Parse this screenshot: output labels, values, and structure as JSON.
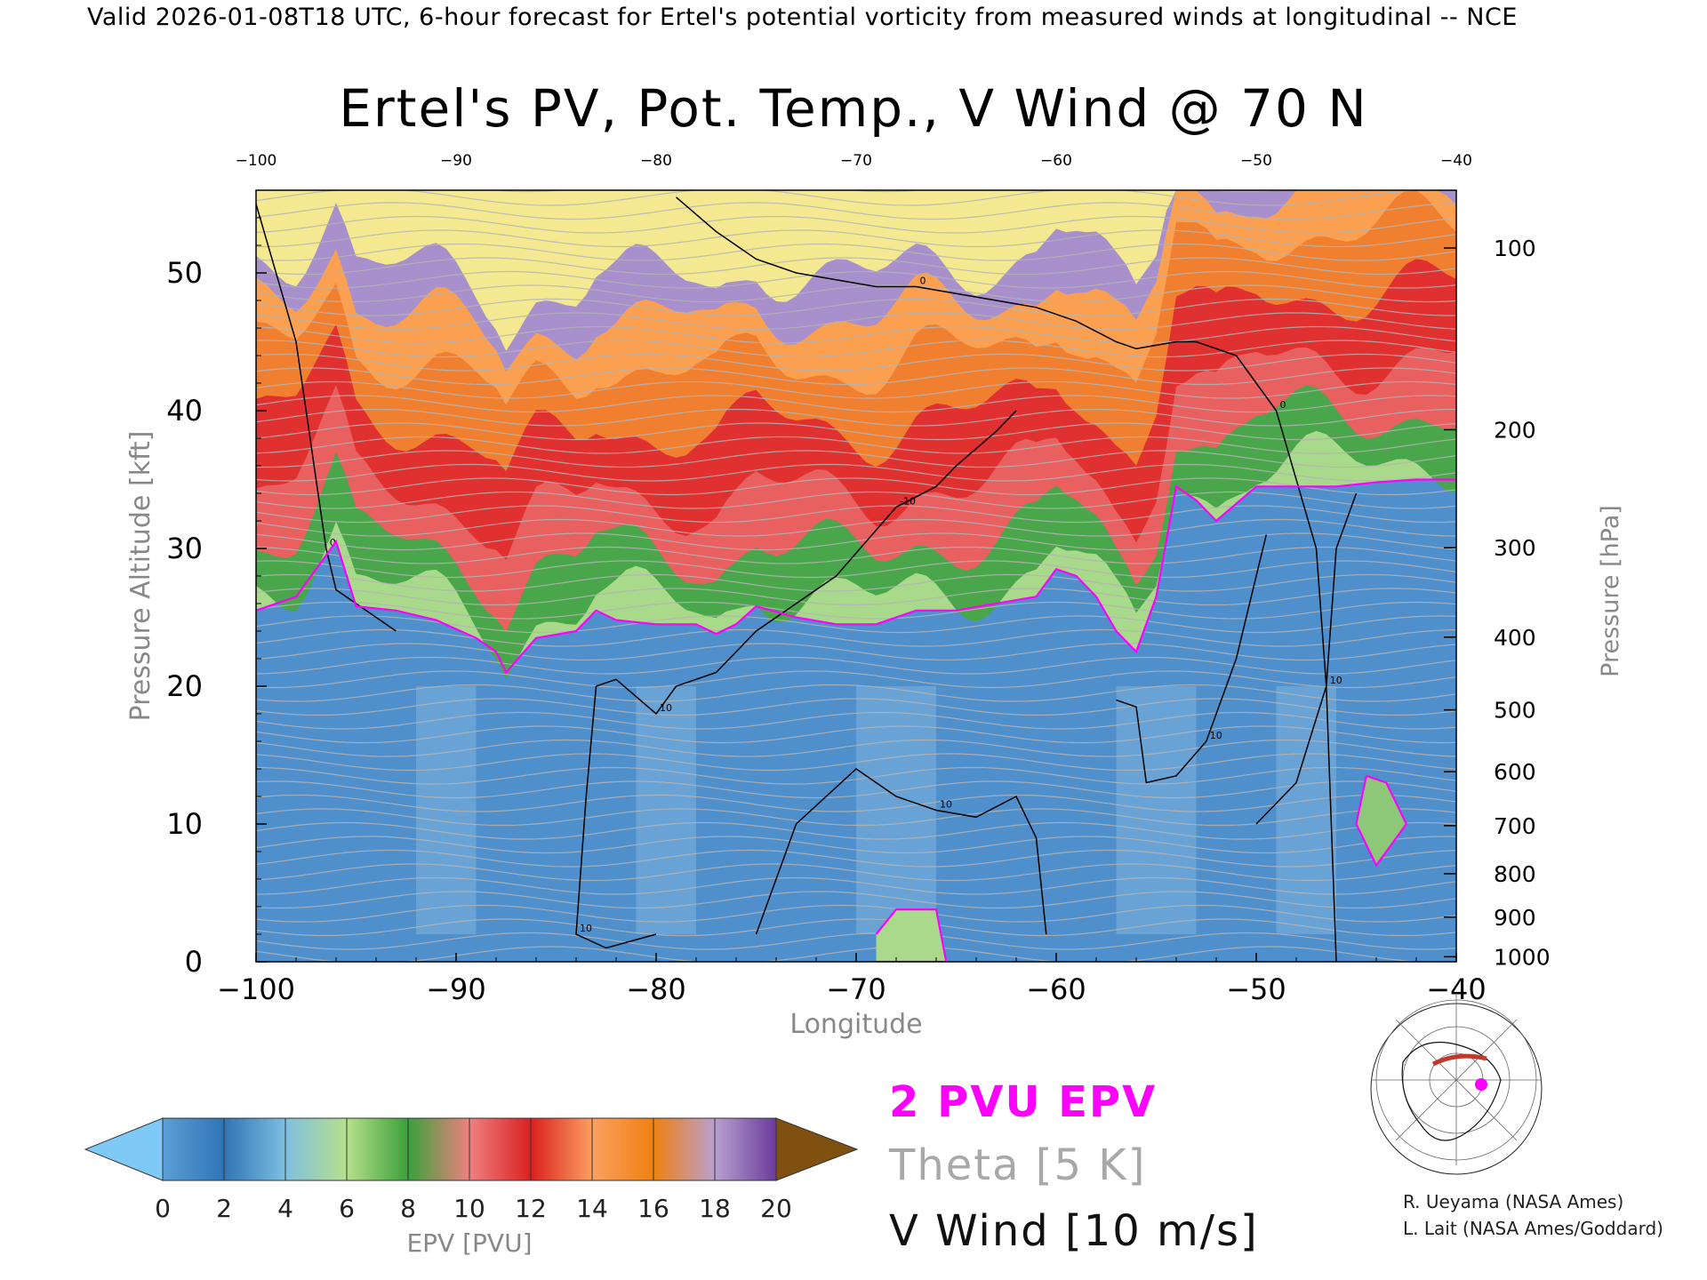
{
  "header": {
    "caption": "Valid 2026-01-08T18 UTC, 6-hour forecast for Ertel's potential vorticity from measured winds at longitudinal -- NCE"
  },
  "chart_data": {
    "type": "heatmap",
    "title": "Ertel's PV, Pot. Temp., V Wind @ 70 N",
    "xlabel": "Longitude",
    "ylabel": "Pressure Altitude [kft]",
    "ylabel_right": "Pressure [hPa]",
    "xlim": [
      -100,
      -40
    ],
    "ylim": [
      0,
      56
    ],
    "x_ticks": [
      -100,
      -90,
      -80,
      -70,
      -60,
      -50,
      -40
    ],
    "x_tick_labels": [
      "−100",
      "−90",
      "−80",
      "−70",
      "−60",
      "−50",
      "−40"
    ],
    "top_tick_labels": [
      "−100",
      "−90",
      "−80",
      "−70",
      "−60",
      "−50",
      "−40"
    ],
    "y_ticks": [
      0,
      10,
      20,
      30,
      40,
      50
    ],
    "y_tick_labels": [
      "0",
      "10",
      "20",
      "30",
      "40",
      "50"
    ],
    "pressure_ticks": [
      {
        "hpa": 100,
        "label": "100"
      },
      {
        "hpa": 200,
        "label": "200"
      },
      {
        "hpa": 300,
        "label": "300"
      },
      {
        "hpa": 400,
        "label": "400"
      },
      {
        "hpa": 500,
        "label": "500"
      },
      {
        "hpa": 600,
        "label": "600"
      },
      {
        "hpa": 700,
        "label": "700"
      },
      {
        "hpa": 800,
        "label": "800"
      },
      {
        "hpa": 900,
        "label": "900"
      },
      {
        "hpa": 1000,
        "label": "1000"
      }
    ],
    "pv_2pvu_contour": {
      "lon": [
        -100,
        -98,
        -96.5,
        -96,
        -95,
        -93,
        -91,
        -89,
        -88,
        -87.5,
        -86,
        -84,
        -83,
        -82,
        -80,
        -78,
        -77,
        -76,
        -75,
        -73,
        -71,
        -69,
        -67,
        -65,
        -63,
        -61,
        -60,
        -59,
        -58,
        -57,
        -56,
        -55,
        -54,
        -53,
        -52,
        -50,
        -48,
        -46,
        -44,
        -42,
        -40
      ],
      "alt": [
        25.5,
        26.5,
        29.5,
        30.5,
        25.8,
        25.5,
        24.8,
        23.5,
        22.5,
        21.0,
        23.5,
        24.0,
        25.5,
        24.8,
        24.5,
        24.5,
        23.8,
        24.5,
        25.8,
        25.0,
        24.5,
        24.5,
        25.5,
        25.5,
        26.0,
        26.5,
        28.5,
        28.0,
        26.5,
        24.0,
        22.5,
        26.5,
        34.5,
        33.5,
        32.0,
        34.5,
        34.5,
        34.5,
        34.8,
        35.0,
        35.0
      ]
    },
    "low_level_2pvu": [
      {
        "lon": [
          -69,
          -68,
          -66,
          -65.5,
          -69
        ],
        "alt": [
          2,
          3.8,
          3.8,
          0,
          0
        ]
      },
      {
        "lon": [
          -44.5,
          -43.5,
          -42.5,
          -44.0,
          -45.0,
          -44.5
        ],
        "alt": [
          13.5,
          13.0,
          10.0,
          7.0,
          10.0,
          13.5
        ]
      }
    ],
    "wind_contours": [
      {
        "level": "0",
        "lon": [
          -100,
          -99,
          -98,
          -97.5,
          -97,
          -96.5,
          -96,
          -95,
          -94,
          -93
        ],
        "alt": [
          55,
          50,
          45,
          40,
          35,
          30,
          27,
          26,
          25,
          24
        ]
      },
      {
        "level": "0",
        "lon": [
          -79,
          -77,
          -75,
          -73,
          -71,
          -69,
          -67,
          -65,
          -63,
          -61,
          -59,
          -57,
          -56
        ],
        "alt": [
          55.5,
          53,
          51,
          50,
          49.5,
          49,
          49,
          48.5,
          48,
          47.5,
          46.5,
          45,
          44.5
        ]
      },
      {
        "level": "0",
        "lon": [
          -56,
          -54,
          -53,
          -51,
          -49,
          -48,
          -47,
          -46.5,
          -46
        ],
        "alt": [
          44.5,
          45,
          45,
          44,
          40,
          35,
          30,
          20,
          0
        ]
      },
      {
        "level": "-10",
        "lon": [
          -77,
          -75,
          -73,
          -71,
          -68,
          -66,
          -65,
          -63,
          -62
        ],
        "alt": [
          21,
          24,
          26,
          28,
          33,
          34.5,
          36,
          38.5,
          40
        ]
      },
      {
        "level": "10",
        "lon": [
          -83,
          -82,
          -80,
          -79,
          -77
        ],
        "alt": [
          20,
          20.5,
          18,
          20,
          21
        ]
      },
      {
        "level": "10",
        "lon": [
          -83,
          -83.5,
          -84,
          -82.5,
          -80
        ],
        "alt": [
          20,
          12,
          2,
          1,
          2
        ]
      },
      {
        "level": "10",
        "lon": [
          -75,
          -73,
          -70,
          -68,
          -66,
          -64,
          -62,
          -61,
          -60.5
        ],
        "alt": [
          2,
          10,
          14,
          12,
          11,
          10.5,
          12,
          9,
          2
        ]
      },
      {
        "level": "10",
        "lon": [
          -57,
          -56,
          -55.5,
          -54,
          -52.5,
          -51,
          -50,
          -49.5
        ],
        "alt": [
          19,
          18.5,
          13,
          13.5,
          16,
          22,
          28,
          31
        ]
      },
      {
        "level": "10",
        "lon": [
          -50,
          -48,
          -46.5,
          -46,
          -45
        ],
        "alt": [
          10,
          13,
          20,
          30,
          34
        ]
      }
    ],
    "colorbar": {
      "label": "EPV [PVU]",
      "ticks": [
        "0",
        "2",
        "4",
        "6",
        "8",
        "10",
        "12",
        "14",
        "16",
        "18",
        "20"
      ],
      "colors": [
        "#5b9fd6",
        "#2f74b5",
        "#7fbfe0",
        "#b6e08a",
        "#3aa03a",
        "#f08080",
        "#d92020",
        "#fca060",
        "#f08010",
        "#b8a0d0",
        "#6a3a9a",
        "#f8f0a0",
        "#c09040"
      ],
      "under_color": "#7ec9f5",
      "over_color": "#805010"
    }
  },
  "legend": {
    "pv": "2 PVU EPV",
    "theta": "Theta [5 K]",
    "wind": "V Wind [10 m/s]"
  },
  "credits": {
    "line1": "R. Ueyama (NASA Ames)",
    "line2": "L. Lait (NASA Ames/Goddard)"
  },
  "colors": {
    "pv_contour": "#ff00ff",
    "theta_lines": "#b4b4b4",
    "wind_lines": "#000000"
  }
}
